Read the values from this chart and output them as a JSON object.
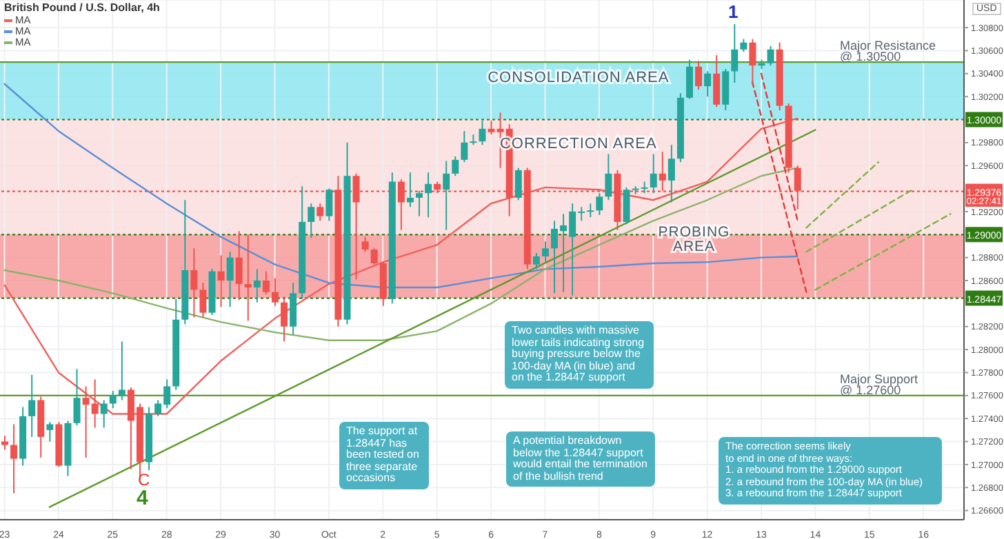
{
  "chart_data": {
    "type": "candlestick",
    "title": "British Pound / U.S. Dollar, 4h",
    "legend": "top left",
    "grid": true,
    "categories": [
      "23",
      null,
      null,
      null,
      null,
      null,
      "24",
      null,
      null,
      null,
      null,
      null,
      "25",
      null,
      null,
      null,
      null,
      null,
      "28",
      null,
      null,
      null,
      null,
      null,
      "29",
      null,
      null,
      null,
      null,
      null,
      "30",
      null,
      null,
      null,
      null,
      null,
      "Oct",
      null,
      null,
      null,
      null,
      null,
      "2",
      null,
      null,
      null,
      null,
      null,
      "5",
      null,
      null,
      null,
      null,
      null,
      "6",
      null,
      null,
      null,
      null,
      null,
      "7",
      null,
      null,
      null,
      null,
      null,
      "8",
      null,
      null,
      null,
      null,
      null,
      "9",
      null,
      null,
      null,
      null,
      null,
      "12",
      null,
      null,
      null,
      null,
      null,
      "13",
      null,
      null,
      null,
      null,
      null,
      "14",
      null,
      null,
      null,
      null,
      null,
      "15",
      null,
      null,
      null,
      null,
      null,
      "16",
      null,
      null,
      null,
      null
    ],
    "ohlc": [
      [
        1.272,
        1.2725,
        1.2713,
        1.2717
      ],
      [
        1.2717,
        1.2735,
        1.2675,
        1.2705
      ],
      [
        1.2705,
        1.275,
        1.2699,
        1.2742
      ],
      [
        1.2742,
        1.2778,
        1.2724,
        1.2756
      ],
      [
        1.2756,
        1.2759,
        1.2706,
        1.2724
      ],
      [
        1.273,
        1.2737,
        1.272,
        1.2735
      ],
      [
        1.2735,
        1.2737,
        1.2698,
        1.2699
      ],
      [
        1.2699,
        1.2738,
        1.269,
        1.2736
      ],
      [
        1.2736,
        1.2783,
        1.2734,
        1.2758
      ],
      [
        1.2758,
        1.2768,
        1.2706,
        1.2752
      ],
      [
        1.2753,
        1.2774,
        1.2732,
        1.2744
      ],
      [
        1.2744,
        1.2756,
        1.2732,
        1.2753
      ],
      [
        1.2753,
        1.2764,
        1.2749,
        1.276
      ],
      [
        1.276,
        1.2807,
        1.2756,
        1.2765
      ],
      [
        1.2765,
        1.2767,
        1.2696,
        1.2738
      ],
      [
        1.275,
        1.2753,
        1.2687,
        1.2702
      ],
      [
        1.2702,
        1.275,
        1.2695,
        1.2744
      ],
      [
        1.2744,
        1.2756,
        1.2742,
        1.2753
      ],
      [
        1.2752,
        1.2774,
        1.2749,
        1.2768
      ],
      [
        1.2768,
        1.2844,
        1.2765,
        1.2826
      ],
      [
        1.2826,
        1.293,
        1.2822,
        1.2869
      ],
      [
        1.2869,
        1.2888,
        1.2828,
        1.2852
      ],
      [
        1.2852,
        1.2858,
        1.2828,
        1.2832
      ],
      [
        1.2832,
        1.287,
        1.283,
        1.2868
      ],
      [
        1.2868,
        1.2882,
        1.2837,
        1.286
      ],
      [
        1.286,
        1.2885,
        1.2837,
        1.288
      ],
      [
        1.288,
        1.2903,
        1.2843,
        1.2857
      ],
      [
        1.2857,
        1.29,
        1.2825,
        1.2854
      ],
      [
        1.2854,
        1.287,
        1.2841,
        1.286
      ],
      [
        1.286,
        1.2868,
        1.2848,
        1.285
      ],
      [
        1.285,
        1.2862,
        1.2838,
        1.2841
      ],
      [
        1.2841,
        1.2846,
        1.2807,
        1.282
      ],
      [
        1.282,
        1.2858,
        1.2813,
        1.2849
      ],
      [
        1.2849,
        1.2942,
        1.2844,
        1.2911
      ],
      [
        1.2911,
        1.2927,
        1.2897,
        1.2924
      ],
      [
        1.2924,
        1.2927,
        1.2912,
        1.2916
      ],
      [
        1.2916,
        1.294,
        1.2912,
        1.2939
      ],
      [
        1.2939,
        1.2951,
        1.282,
        1.2826
      ],
      [
        1.2826,
        1.298,
        1.2822,
        1.2951
      ],
      [
        1.2951,
        1.2953,
        1.2861,
        1.2928
      ],
      [
        1.2894,
        1.2898,
        1.2885,
        1.2887
      ],
      [
        1.2887,
        1.2888,
        1.2874,
        1.2875
      ],
      [
        1.2875,
        1.2876,
        1.2838,
        1.2844
      ],
      [
        1.2844,
        1.2954,
        1.284,
        1.2946
      ],
      [
        1.2946,
        1.2948,
        1.2904,
        1.2928
      ],
      [
        1.2928,
        1.2954,
        1.2924,
        1.2932
      ],
      [
        1.2932,
        1.2938,
        1.2916,
        1.2936
      ],
      [
        1.2936,
        1.2954,
        1.2915,
        1.2944
      ],
      [
        1.2944,
        1.2946,
        1.2936,
        1.2939
      ],
      [
        1.2939,
        1.2964,
        1.2904,
        1.2953
      ],
      [
        1.2953,
        1.2968,
        1.2951,
        1.2965
      ],
      [
        1.2965,
        1.299,
        1.2963,
        1.298
      ],
      [
        1.298,
        1.2987,
        1.2978,
        1.2981
      ],
      [
        1.2981,
        1.2999,
        1.2978,
        1.2992
      ],
      [
        1.2992,
        1.2999,
        1.2987,
        1.2989
      ],
      [
        1.2992,
        1.3006,
        1.2958,
        1.2989
      ],
      [
        1.2992,
        1.2996,
        1.2916,
        1.2932
      ],
      [
        1.2932,
        1.2958,
        1.293,
        1.2956
      ],
      [
        1.2956,
        1.2958,
        1.287,
        1.2874
      ],
      [
        1.2874,
        1.2884,
        1.287,
        1.2881
      ],
      [
        1.2881,
        1.2894,
        1.2876,
        1.2888
      ],
      [
        1.2888,
        1.2912,
        1.2849,
        1.2905
      ],
      [
        1.2903,
        1.2918,
        1.285,
        1.2908
      ],
      [
        1.2898,
        1.2927,
        1.2847,
        1.292
      ],
      [
        1.2919,
        1.2924,
        1.2912,
        1.292
      ],
      [
        1.292,
        1.2927,
        1.2915,
        1.2921
      ],
      [
        1.2921,
        1.2936,
        1.2917,
        1.2933
      ],
      [
        1.2933,
        1.297,
        1.293,
        1.2953
      ],
      [
        1.2953,
        1.2956,
        1.2904,
        1.2911
      ],
      [
        1.2911,
        1.2941,
        1.2909,
        1.2939
      ],
      [
        1.2939,
        1.2942,
        1.2935,
        1.294
      ],
      [
        1.294,
        1.2946,
        1.2936,
        1.2941
      ],
      [
        1.2941,
        1.297,
        1.2936,
        1.2953
      ],
      [
        1.2953,
        1.2972,
        1.2938,
        1.2947
      ],
      [
        1.2947,
        1.2978,
        1.2928,
        1.2966
      ],
      [
        1.2966,
        1.3023,
        1.2963,
        1.3019
      ],
      [
        1.3019,
        1.3052,
        1.3018,
        1.3046
      ],
      [
        1.3046,
        1.3051,
        1.3026,
        1.3029
      ],
      [
        1.3029,
        1.3042,
        1.302,
        1.304
      ],
      [
        1.304,
        1.3056,
        1.3011,
        1.3013
      ],
      [
        1.3013,
        1.3044,
        1.3008,
        1.3042
      ],
      [
        1.3042,
        1.3083,
        1.3032,
        1.3061
      ],
      [
        1.3061,
        1.307,
        1.3059,
        1.3067
      ],
      [
        1.3067,
        1.307,
        1.303,
        1.3047
      ],
      [
        1.3047,
        1.3052,
        1.3044,
        1.3049
      ],
      [
        1.3049,
        1.3064,
        1.3047,
        1.3061
      ],
      [
        1.3061,
        1.3067,
        1.3008,
        1.3012
      ],
      [
        1.3012,
        1.3014,
        1.2954,
        1.2958
      ],
      [
        1.2958,
        1.296,
        1.2922,
        1.2938
      ],
      null,
      null,
      null,
      null,
      null,
      null,
      null,
      null,
      null,
      null,
      null,
      null,
      null,
      null,
      null,
      null,
      null,
      null
    ],
    "colors": [
      "#ef5350",
      "#ef5350",
      "#26a69a",
      "#26a69a",
      "#ef5350",
      "#26a69a",
      "#ef5350",
      "#26a69a",
      "#26a69a",
      "#ef5350",
      "#ef5350",
      "#26a69a",
      "#26a69a",
      "#26a69a",
      "#ef5350",
      "#ef5350",
      "#26a69a",
      "#26a69a",
      "#26a69a",
      "#26a69a",
      "#26a69a",
      "#ef5350",
      "#ef5350",
      "#26a69a",
      "#ef5350",
      "#26a69a",
      "#ef5350",
      "#ef5350",
      "#26a69a",
      "#ef5350",
      "#ef5350",
      "#ef5350",
      "#26a69a",
      "#26a69a",
      "#26a69a",
      "#ef5350",
      "#26a69a",
      "#ef5350",
      "#26a69a",
      "#ef5350",
      "#ef5350",
      "#ef5350",
      "#ef5350",
      "#26a69a",
      "#ef5350",
      "#26a69a",
      "#26a69a",
      "#26a69a",
      "#ef5350",
      "#26a69a",
      "#26a69a",
      "#26a69a",
      "#26a69a",
      "#26a69a",
      "#ef5350",
      "#ef5350",
      "#ef5350",
      "#26a69a",
      "#ef5350",
      "#26a69a",
      "#26a69a",
      "#26a69a",
      "#26a69a",
      "#26a69a",
      "#26a69a",
      "#26a69a",
      "#26a69a",
      "#26a69a",
      "#ef5350",
      "#26a69a",
      "#26a69a",
      "#26a69a",
      "#26a69a",
      "#ef5350",
      "#26a69a",
      "#26a69a",
      "#26a69a",
      "#ef5350",
      "#26a69a",
      "#ef5350",
      "#26a69a",
      "#26a69a",
      "#26a69a",
      "#ef5350",
      "#26a69a",
      "#26a69a",
      "#ef5350",
      "#ef5350",
      "#ef5350",
      null,
      null,
      null,
      null,
      null,
      null,
      null,
      null,
      null,
      null,
      null,
      null,
      null,
      null,
      null,
      null,
      null,
      null
    ],
    "series": [
      {
        "type": "line",
        "name": "MA",
        "color": "#f0605d",
        "values": [
          1.2856,
          null,
          null,
          null,
          null,
          null,
          1.278,
          null,
          null,
          null,
          null,
          null,
          1.2744,
          null,
          null,
          null,
          null,
          null,
          1.2744,
          null,
          null,
          null,
          null,
          null,
          1.279,
          null,
          null,
          null,
          null,
          null,
          1.2827,
          null,
          null,
          null,
          null,
          null,
          1.2857,
          null,
          null,
          null,
          null,
          null,
          1.2876,
          null,
          null,
          null,
          null,
          null,
          1.2891,
          null,
          null,
          null,
          null,
          null,
          1.2927,
          null,
          null,
          null,
          null,
          null,
          1.2941,
          null,
          null,
          null,
          null,
          null,
          1.2939,
          null,
          null,
          null,
          null,
          null,
          1.293,
          null,
          null,
          null,
          null,
          null,
          1.2946,
          null,
          null,
          null,
          null,
          null,
          1.2992,
          null,
          null,
          null,
          1.3001,
          null,
          null,
          null,
          null,
          null,
          null,
          null,
          null,
          null,
          null,
          null,
          null,
          null,
          null,
          null,
          null,
          null,
          null
        ]
      },
      {
        "type": "line",
        "name": "MA",
        "color": "#5b8fd6",
        "values": [
          1.3031,
          null,
          null,
          null,
          null,
          null,
          1.299,
          null,
          null,
          null,
          null,
          null,
          1.2958,
          null,
          null,
          null,
          null,
          null,
          1.2927,
          null,
          null,
          null,
          null,
          null,
          1.2898,
          null,
          null,
          null,
          null,
          null,
          1.2874,
          null,
          null,
          null,
          null,
          null,
          1.2858,
          null,
          null,
          null,
          null,
          null,
          1.2854,
          null,
          null,
          null,
          null,
          null,
          1.2854,
          null,
          null,
          null,
          null,
          null,
          1.2862,
          null,
          null,
          null,
          null,
          null,
          1.287,
          null,
          null,
          null,
          null,
          null,
          1.2872,
          null,
          null,
          null,
          null,
          null,
          1.2875,
          null,
          null,
          null,
          null,
          null,
          1.2876,
          null,
          null,
          null,
          null,
          null,
          1.288,
          null,
          null,
          null,
          1.2881,
          null,
          null,
          null,
          null,
          null,
          null,
          null,
          null,
          null,
          null,
          null,
          null,
          null,
          null,
          null,
          null,
          null,
          null
        ]
      },
      {
        "type": "line",
        "name": "MA",
        "color": "#8bb36a",
        "values": [
          1.2869,
          null,
          null,
          null,
          null,
          null,
          1.286,
          null,
          null,
          null,
          null,
          null,
          1.2849,
          null,
          null,
          null,
          null,
          null,
          1.2836,
          null,
          null,
          null,
          null,
          null,
          1.2824,
          null,
          null,
          null,
          null,
          null,
          1.2815,
          null,
          null,
          null,
          null,
          null,
          1.2808,
          null,
          null,
          null,
          null,
          null,
          1.2808,
          null,
          null,
          null,
          null,
          null,
          1.2816,
          null,
          null,
          null,
          null,
          null,
          1.284,
          null,
          null,
          null,
          null,
          null,
          1.287,
          null,
          null,
          null,
          null,
          null,
          1.2891,
          null,
          null,
          null,
          null,
          null,
          1.2912,
          null,
          null,
          null,
          null,
          null,
          1.293,
          null,
          null,
          null,
          null,
          null,
          1.2951,
          null,
          null,
          null,
          1.2958,
          null,
          null,
          null,
          null,
          null,
          null,
          null,
          null,
          null,
          null,
          null,
          null,
          null,
          null,
          null,
          null,
          null,
          null
        ]
      },
      {
        "type": "line",
        "color": "#5e9a2c",
        "line_style": "solid",
        "values": [
          null,
          null,
          null,
          null,
          null,
          1.2663,
          null,
          null,
          null,
          null,
          null,
          null,
          null,
          null,
          null,
          null,
          null,
          null,
          null,
          null,
          null,
          null,
          null,
          null,
          null,
          null,
          null,
          null,
          null,
          null,
          null,
          null,
          null,
          null,
          null,
          null,
          null,
          null,
          null,
          null,
          null,
          null,
          null,
          null,
          null,
          null,
          null,
          null,
          null,
          null,
          null,
          null,
          null,
          null,
          null,
          null,
          null,
          null,
          null,
          null,
          null,
          null,
          null,
          null,
          null,
          null,
          null,
          null,
          null,
          null,
          null,
          null,
          null,
          null,
          null,
          null,
          null,
          null,
          null,
          null,
          null,
          null,
          null,
          null,
          null,
          null,
          null,
          null,
          null,
          null,
          1.2991,
          null,
          null,
          null,
          null,
          null,
          null,
          null,
          null,
          null,
          null,
          null,
          null,
          null,
          null,
          null,
          null
        ]
      },
      {
        "type": "line",
        "color": "#e53935",
        "line_style": "dashed",
        "values": [
          null,
          null,
          null,
          null,
          null,
          null,
          null,
          null,
          null,
          null,
          null,
          null,
          null,
          null,
          null,
          null,
          null,
          null,
          null,
          null,
          null,
          null,
          null,
          null,
          null,
          null,
          null,
          null,
          null,
          null,
          null,
          null,
          null,
          null,
          null,
          null,
          null,
          null,
          null,
          null,
          null,
          null,
          null,
          null,
          null,
          null,
          null,
          null,
          null,
          null,
          null,
          null,
          null,
          null,
          null,
          null,
          null,
          null,
          null,
          null,
          null,
          null,
          null,
          null,
          null,
          null,
          null,
          null,
          null,
          null,
          null,
          null,
          null,
          null,
          null,
          null,
          null,
          null,
          null,
          null,
          null,
          null,
          null,
          null,
          1.304,
          null,
          null,
          null,
          1.2913,
          null,
          null,
          null,
          null,
          null,
          null,
          null,
          null,
          null,
          null,
          null,
          null,
          null,
          null,
          null,
          null,
          null,
          null
        ]
      },
      {
        "type": "line",
        "color": "#e53935",
        "line_style": "dashed",
        "values": [
          null,
          null,
          null,
          null,
          null,
          null,
          null,
          null,
          null,
          null,
          null,
          null,
          null,
          null,
          null,
          null,
          null,
          null,
          null,
          null,
          null,
          null,
          null,
          null,
          null,
          null,
          null,
          null,
          null,
          null,
          null,
          null,
          null,
          null,
          null,
          null,
          null,
          null,
          null,
          null,
          null,
          null,
          null,
          null,
          null,
          null,
          null,
          null,
          null,
          null,
          null,
          null,
          null,
          null,
          null,
          null,
          null,
          null,
          null,
          null,
          null,
          null,
          null,
          null,
          null,
          null,
          null,
          null,
          null,
          null,
          null,
          null,
          null,
          null,
          null,
          null,
          null,
          null,
          null,
          null,
          null,
          null,
          null,
          1.3033,
          null,
          null,
          null,
          null,
          null,
          1.285,
          null,
          null,
          null,
          null,
          null,
          null,
          null,
          null,
          null,
          null,
          null,
          null,
          null,
          null,
          null,
          null,
          null
        ]
      },
      {
        "type": "line",
        "color": "#7cb342",
        "line_style": "dashed",
        "values": [
          null,
          null,
          null,
          null,
          null,
          null,
          null,
          null,
          null,
          null,
          null,
          null,
          null,
          null,
          null,
          null,
          null,
          null,
          null,
          null,
          null,
          null,
          null,
          null,
          null,
          null,
          null,
          null,
          null,
          null,
          null,
          null,
          null,
          null,
          null,
          null,
          null,
          null,
          null,
          null,
          null,
          null,
          null,
          null,
          null,
          null,
          null,
          null,
          null,
          null,
          null,
          null,
          null,
          null,
          null,
          null,
          null,
          null,
          null,
          null,
          null,
          null,
          null,
          null,
          null,
          null,
          null,
          null,
          null,
          null,
          null,
          null,
          null,
          null,
          null,
          null,
          null,
          null,
          null,
          null,
          null,
          null,
          null,
          null,
          null,
          null,
          null,
          null,
          null,
          1.2906,
          null,
          null,
          null,
          null,
          null,
          null,
          null,
          1.2963,
          null,
          null,
          null,
          null,
          null,
          null,
          null,
          null,
          null
        ]
      },
      {
        "type": "line",
        "color": "#7cb342",
        "line_style": "dashed",
        "values": [
          null,
          null,
          null,
          null,
          null,
          null,
          null,
          null,
          null,
          null,
          null,
          null,
          null,
          null,
          null,
          null,
          null,
          null,
          null,
          null,
          null,
          null,
          null,
          null,
          null,
          null,
          null,
          null,
          null,
          null,
          null,
          null,
          null,
          null,
          null,
          null,
          null,
          null,
          null,
          null,
          null,
          null,
          null,
          null,
          null,
          null,
          null,
          null,
          null,
          null,
          null,
          null,
          null,
          null,
          null,
          null,
          null,
          null,
          null,
          null,
          null,
          null,
          null,
          null,
          null,
          null,
          null,
          null,
          null,
          null,
          null,
          null,
          null,
          null,
          null,
          null,
          null,
          null,
          null,
          null,
          null,
          null,
          null,
          null,
          null,
          null,
          null,
          null,
          null,
          1.2885,
          null,
          null,
          null,
          null,
          null,
          null,
          null,
          null,
          null,
          null,
          null,
          1.294,
          null,
          null,
          null,
          null,
          null
        ]
      },
      {
        "type": "line",
        "color": "#7cb342",
        "line_style": "dashed",
        "values": [
          null,
          null,
          null,
          null,
          null,
          null,
          null,
          null,
          null,
          null,
          null,
          null,
          null,
          null,
          null,
          null,
          null,
          null,
          null,
          null,
          null,
          null,
          null,
          null,
          null,
          null,
          null,
          null,
          null,
          null,
          null,
          null,
          null,
          null,
          null,
          null,
          null,
          null,
          null,
          null,
          null,
          null,
          null,
          null,
          null,
          null,
          null,
          null,
          null,
          null,
          null,
          null,
          null,
          null,
          null,
          null,
          null,
          null,
          null,
          null,
          null,
          null,
          null,
          null,
          null,
          null,
          null,
          null,
          null,
          null,
          null,
          null,
          null,
          null,
          null,
          null,
          null,
          null,
          null,
          null,
          null,
          null,
          null,
          null,
          null,
          null,
          null,
          null,
          null,
          null,
          1.2852,
          null,
          null,
          null,
          null,
          null,
          null,
          null,
          null,
          null,
          null,
          null,
          null,
          null,
          null,
          1.2918,
          null
        ]
      }
    ],
    "ylim": [
      1.2652,
      1.3104
    ],
    "yticks": [
      {
        "value": 1.266,
        "label": "1.26600"
      },
      {
        "value": 1.268,
        "label": "1.26800"
      },
      {
        "value": 1.27,
        "label": "1.27000"
      },
      {
        "value": 1.272,
        "label": "1.27200"
      },
      {
        "value": 1.274,
        "label": "1.27400"
      },
      {
        "value": 1.276,
        "label": "1.27600"
      },
      {
        "value": 1.278,
        "label": "1.27800"
      },
      {
        "value": 1.28,
        "label": "1.28000"
      },
      {
        "value": 1.282,
        "label": "1.28200"
      },
      {
        "value": 1.286,
        "label": "1.28600"
      },
      {
        "value": 1.288,
        "label": "1.28800"
      },
      {
        "value": 1.292,
        "label": "1.29200"
      },
      {
        "value": 1.296,
        "label": "1.29600"
      },
      {
        "value": 1.298,
        "label": "1.29800"
      },
      {
        "value": 1.302,
        "label": "1.30200"
      },
      {
        "value": 1.304,
        "label": "1.30400"
      },
      {
        "value": 1.306,
        "label": "1.30600"
      },
      {
        "value": 1.308,
        "label": "1.30800"
      }
    ],
    "bands": [
      {
        "axis": "y",
        "from": 1.3,
        "to": 1.305,
        "label": "CONSOLIDATION AREA",
        "color": "#7fe3ee"
      },
      {
        "axis": "y",
        "from": 1.29,
        "to": 1.3,
        "label": "CORRECTION AREA",
        "color": "#fbd9d9"
      },
      {
        "axis": "y",
        "from": 1.28447,
        "to": 1.29,
        "label": "PROBING AREA",
        "color": "#f58d8d"
      }
    ],
    "ref_lines": [
      {
        "axis": "y",
        "value": 1.305,
        "label": "Major Resistance @ 1.30500",
        "color": "#5e9a2c",
        "line_style": "solid"
      },
      {
        "axis": "y",
        "value": 1.276,
        "label": "Major Support @ 1.27600",
        "color": "#5e9a2c",
        "line_style": "solid"
      },
      {
        "axis": "y",
        "value": 1.3,
        "label": "1.30000",
        "color": "#2f7d12",
        "line_style": "dotted"
      },
      {
        "axis": "y",
        "value": 1.29,
        "label": "1.29000",
        "color": "#2f7d12",
        "line_style": "dotted"
      },
      {
        "axis": "y",
        "value": 1.28447,
        "label": "1.28447",
        "color": "#2f7d12",
        "line_style": "dotted"
      },
      {
        "axis": "y",
        "value": 1.29376,
        "label": "1.29376",
        "color": "#ef5350",
        "line_style": "dotted"
      }
    ],
    "annotations": [
      "1",
      "C",
      "4",
      "Two candles with massive lower tails indicating strong buying pressure below the 100-day MA (in blue) and on the 1.28447 support",
      "The support at 1.28447 has been tested on three separate occasions",
      "A potential breakdown below the 1.28447 support would entail the termination of the bullish trend",
      "The correction seems likely\nto end in one of three ways:\n1. a rebound from the 1.29000 support\n2. a rebound from the 100-day MA (in blue)\n3. a rebound from the 1.28447 support",
      "02:27:41",
      "USD"
    ]
  }
}
